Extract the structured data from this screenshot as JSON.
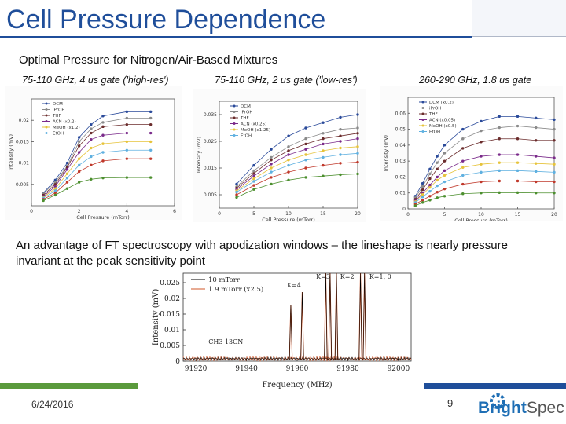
{
  "slide": {
    "title": "Cell Pressure Dependence",
    "subtitle": "Optimal Pressure for Nitrogen/Air-Based Mixtures",
    "panel_captions": [
      "75-110 GHz, 4 us gate ('high-res')",
      "75-110 GHz, 2 us gate ('low-res')",
      "260-290 GHz, 1.8 us gate"
    ],
    "advantage_text": "An advantage of FT spectroscopy with apodization windows – the lineshape is nearly pressure invariant at the peak sensitivity point",
    "date": "6/24/2016",
    "page_number": "9",
    "logo": {
      "part1": "Bright",
      "part2": "Spec"
    },
    "colors": {
      "title": "#1f4e9a",
      "footer_green": "#5a9a3c",
      "footer_blue": "#1f4e9a"
    }
  },
  "chart_data": [
    {
      "type": "line",
      "xlabel": "Cell Pressure (mTorr)",
      "ylabel": "Intensity (mV)",
      "ylim": [
        0,
        0.025
      ],
      "xlim": [
        0,
        6
      ],
      "xticks": [
        "0",
        "2",
        "4",
        "6"
      ],
      "yticks": [
        "0.02",
        "0.015",
        "0.01",
        "0.005"
      ],
      "x": [
        0.5,
        1.0,
        1.5,
        2.0,
        2.5,
        3.0,
        4.0,
        5.0
      ],
      "series": [
        {
          "name": "DCM",
          "color": "#2a4a9a",
          "values": [
            0.003,
            0.006,
            0.01,
            0.016,
            0.019,
            0.021,
            0.022,
            0.022
          ]
        },
        {
          "name": "iPrOH",
          "color": "#8a8a8a",
          "values": [
            0.0028,
            0.0055,
            0.0093,
            0.015,
            0.018,
            0.0195,
            0.0205,
            0.0205
          ]
        },
        {
          "name": "THF",
          "color": "#6b2c2c",
          "values": [
            0.0025,
            0.005,
            0.009,
            0.014,
            0.017,
            0.0185,
            0.019,
            0.019
          ]
        },
        {
          "name": "ACN (x0.2)",
          "color": "#7a2a8a",
          "values": [
            0.0022,
            0.0045,
            0.0085,
            0.0125,
            0.0155,
            0.0165,
            0.017,
            0.017
          ]
        },
        {
          "name": "MeOH (x1.2)",
          "color": "#e6c33a",
          "values": [
            0.002,
            0.004,
            0.0075,
            0.011,
            0.0135,
            0.0145,
            0.015,
            0.015
          ]
        },
        {
          "name": "EtOH",
          "color": "#5fb0e0",
          "values": [
            0.0018,
            0.0035,
            0.0065,
            0.0095,
            0.0115,
            0.0125,
            0.013,
            0.013
          ]
        },
        {
          "name": "",
          "color": "#c0392b",
          "values": [
            0.0015,
            0.003,
            0.0055,
            0.008,
            0.0095,
            0.0105,
            0.011,
            0.011
          ]
        },
        {
          "name": "",
          "color": "#4c8f2e",
          "values": [
            0.0012,
            0.0025,
            0.004,
            0.0055,
            0.0062,
            0.0065,
            0.0066,
            0.0066
          ]
        }
      ]
    },
    {
      "type": "line",
      "xlabel": "Cell Pressure (mTorr)",
      "ylabel": "Intensity (mV)",
      "ylim": [
        0,
        0.04
      ],
      "xlim": [
        0,
        20
      ],
      "xticks": [
        "0",
        "5",
        "10",
        "15",
        "20"
      ],
      "yticks": [
        "0.035",
        "0.025",
        "0.015",
        "0.005"
      ],
      "x": [
        2.5,
        5,
        7.5,
        10,
        12.5,
        15,
        17.5,
        20
      ],
      "series": [
        {
          "name": "DCM",
          "color": "#2a4a9a",
          "values": [
            0.009,
            0.016,
            0.022,
            0.027,
            0.03,
            0.032,
            0.034,
            0.035
          ]
        },
        {
          "name": "iPrOH",
          "color": "#8a8a8a",
          "values": [
            0.008,
            0.014,
            0.019,
            0.023,
            0.026,
            0.028,
            0.0295,
            0.03
          ]
        },
        {
          "name": "THF",
          "color": "#6b2c2c",
          "values": [
            0.0075,
            0.013,
            0.018,
            0.0215,
            0.024,
            0.026,
            0.027,
            0.028
          ]
        },
        {
          "name": "ACN (x0.25)",
          "color": "#7a2a8a",
          "values": [
            0.007,
            0.012,
            0.0165,
            0.02,
            0.022,
            0.024,
            0.025,
            0.026
          ]
        },
        {
          "name": "MeOH (x1.25)",
          "color": "#e6c33a",
          "values": [
            0.0065,
            0.011,
            0.015,
            0.018,
            0.02,
            0.0215,
            0.0225,
            0.023
          ]
        },
        {
          "name": "EtOH",
          "color": "#5fb0e0",
          "values": [
            0.006,
            0.01,
            0.0135,
            0.016,
            0.018,
            0.019,
            0.02,
            0.0205
          ]
        },
        {
          "name": "",
          "color": "#c0392b",
          "values": [
            0.005,
            0.0085,
            0.0115,
            0.0135,
            0.015,
            0.016,
            0.0168,
            0.0172
          ]
        },
        {
          "name": "",
          "color": "#4c8f2e",
          "values": [
            0.004,
            0.007,
            0.009,
            0.0105,
            0.0115,
            0.012,
            0.0125,
            0.0128
          ]
        }
      ]
    },
    {
      "type": "line",
      "xlabel": "Cell Pressure (mTorr)",
      "ylabel": "Intensity (mV)",
      "ylim": [
        0,
        0.07
      ],
      "xlim": [
        0,
        20
      ],
      "xticks": [
        "0",
        "5",
        "10",
        "15",
        "20"
      ],
      "yticks": [
        "0.06",
        "0.05",
        "0.04",
        "0.03",
        "0.02",
        "0.01",
        "0"
      ],
      "x": [
        1,
        2,
        3,
        4,
        5,
        7.5,
        10,
        12.5,
        15,
        17.5,
        20
      ],
      "series": [
        {
          "name": "DCM (x0.2)",
          "color": "#2a4a9a",
          "values": [
            0.008,
            0.016,
            0.025,
            0.033,
            0.04,
            0.05,
            0.055,
            0.058,
            0.058,
            0.057,
            0.056
          ]
        },
        {
          "name": "iPrOH",
          "color": "#8a8a8a",
          "values": [
            0.007,
            0.014,
            0.022,
            0.029,
            0.035,
            0.044,
            0.049,
            0.051,
            0.052,
            0.051,
            0.05
          ]
        },
        {
          "name": "THF",
          "color": "#6b2c2c",
          "values": [
            0.006,
            0.012,
            0.019,
            0.025,
            0.03,
            0.038,
            0.042,
            0.044,
            0.044,
            0.043,
            0.043
          ]
        },
        {
          "name": "ACN (x0.05)",
          "color": "#7a2a8a",
          "values": [
            0.005,
            0.01,
            0.015,
            0.02,
            0.024,
            0.03,
            0.033,
            0.034,
            0.034,
            0.033,
            0.032
          ]
        },
        {
          "name": "MeOH (x0.5)",
          "color": "#e6c33a",
          "values": [
            0.0045,
            0.009,
            0.0135,
            0.018,
            0.021,
            0.026,
            0.028,
            0.029,
            0.029,
            0.0285,
            0.028
          ]
        },
        {
          "name": "EtOH",
          "color": "#5fb0e0",
          "values": [
            0.004,
            0.0075,
            0.011,
            0.0145,
            0.017,
            0.021,
            0.023,
            0.024,
            0.024,
            0.0235,
            0.023
          ]
        },
        {
          "name": "",
          "color": "#c0392b",
          "values": [
            0.003,
            0.0055,
            0.008,
            0.0105,
            0.0125,
            0.0155,
            0.017,
            0.0175,
            0.0175,
            0.017,
            0.017
          ]
        },
        {
          "name": "",
          "color": "#4c8f2e",
          "values": [
            0.002,
            0.004,
            0.0055,
            0.007,
            0.008,
            0.0095,
            0.01,
            0.0102,
            0.0102,
            0.01,
            0.01
          ]
        }
      ]
    },
    {
      "type": "line",
      "xlabel": "Frequency (MHz)",
      "ylabel": "Intensity (mV)",
      "xlim": [
        91915,
        92005
      ],
      "ylim": [
        0,
        0.028
      ],
      "xticks": [
        "91920",
        "91940",
        "91960",
        "91980",
        "92000"
      ],
      "yticks": [
        "0.025",
        "0.02",
        "0.015",
        "0.01",
        "0.005",
        "0"
      ],
      "series": [
        {
          "name": "10 mTorr",
          "color": "#000000"
        },
        {
          "name": "1.9 mTorr (x2.5)",
          "color": "#d2572a"
        }
      ],
      "peaks": [
        {
          "x": 91957.5,
          "y": 0.018
        },
        {
          "x": 91962.0,
          "y": 0.022
        },
        {
          "x": 91971.3,
          "y": 0.028
        },
        {
          "x": 91973.0,
          "y": 0.028
        },
        {
          "x": 91975.5,
          "y": 0.028
        },
        {
          "x": 91985.0,
          "y": 0.028
        },
        {
          "x": 91986.6,
          "y": 0.028
        }
      ],
      "annotations": [
        "K=4",
        "K=3",
        "K=2",
        "K=1, 0",
        "CH3 13CN"
      ]
    }
  ]
}
